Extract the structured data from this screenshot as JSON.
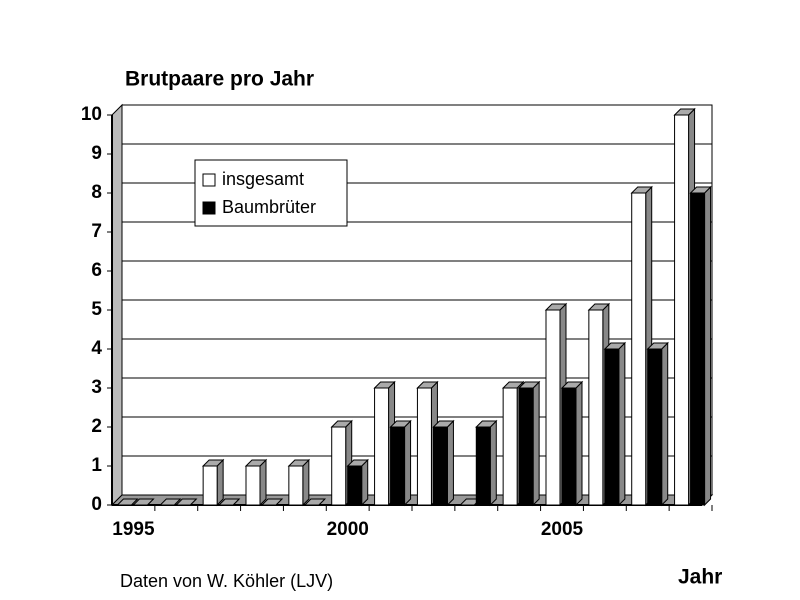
{
  "chart_data": {
    "type": "bar",
    "title": "Brutpaare pro Jahr",
    "x_label": "Jahr",
    "note": "Daten von W. Köhler (LJV)",
    "categories": [
      "1995",
      null,
      null,
      null,
      null,
      "2000",
      null,
      null,
      null,
      null,
      "2005",
      null,
      null,
      null
    ],
    "series": [
      {
        "name": "insgesamt",
        "color": "#ffffff",
        "values": [
          0,
          0,
          1,
          1,
          1,
          2,
          3,
          3,
          0,
          3,
          5,
          5,
          8,
          10
        ]
      },
      {
        "name": "Baumbrüter",
        "color": "#000000",
        "values": [
          0,
          0,
          0,
          0,
          0,
          1,
          2,
          2,
          2,
          3,
          3,
          4,
          4,
          8
        ]
      }
    ],
    "ylim": [
      0,
      10
    ],
    "yticks": [
      0,
      1,
      2,
      3,
      4,
      5,
      6,
      7,
      8,
      9,
      10
    ],
    "grid": true,
    "legend": "upper left"
  }
}
